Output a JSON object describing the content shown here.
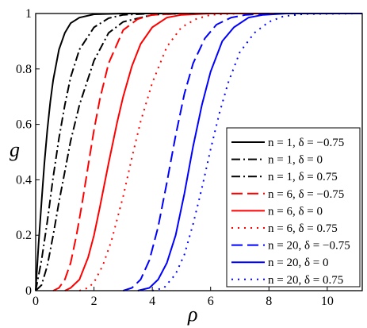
{
  "chart_data": {
    "type": "line",
    "xlabel": "ρ",
    "ylabel": "g",
    "xlim": [
      0,
      11.2
    ],
    "ylim": [
      0,
      1
    ],
    "x_ticks": [
      "0",
      "2",
      "4",
      "6",
      "8",
      "10"
    ],
    "y_ticks": [
      "0",
      "0.2",
      "0.4",
      "0.6",
      "0.8",
      "1"
    ],
    "grid": false,
    "legend_position": "right",
    "series": [
      {
        "name": "n = 1,  δ = −0.75",
        "color": "#000000",
        "dash": "solid",
        "x": [
          0,
          0.1,
          0.2,
          0.3,
          0.4,
          0.5,
          0.6,
          0.8,
          1.0,
          1.2,
          1.5,
          2.0,
          3.0,
          11.2
        ],
        "y": [
          0,
          0.17,
          0.32,
          0.46,
          0.58,
          0.68,
          0.76,
          0.87,
          0.93,
          0.965,
          0.985,
          0.997,
          1.0,
          1.0
        ]
      },
      {
        "name": "n = 1,  δ = 0",
        "color": "#000000",
        "dash": "dashdot",
        "x": [
          0,
          0.2,
          0.4,
          0.6,
          0.8,
          1.0,
          1.2,
          1.5,
          2.0,
          2.5,
          3.0,
          4.0,
          11.2
        ],
        "y": [
          0,
          0.11,
          0.25,
          0.41,
          0.55,
          0.67,
          0.77,
          0.87,
          0.95,
          0.983,
          0.995,
          1.0,
          1.0
        ]
      },
      {
        "name": "n = 1,  δ = 0.75",
        "color": "#000000",
        "dash": "dashdot",
        "x": [
          0,
          0.2,
          0.4,
          0.6,
          0.8,
          1.0,
          1.2,
          1.5,
          2.0,
          2.5,
          3.0,
          4.0,
          5.0,
          11.2
        ],
        "y": [
          0,
          0.02,
          0.09,
          0.2,
          0.32,
          0.43,
          0.54,
          0.67,
          0.83,
          0.93,
          0.97,
          0.995,
          1.0,
          1.0
        ]
      },
      {
        "name": "n = 6,  δ = −0.75",
        "color": "#ff0000",
        "dash": "longdash",
        "x": [
          0.6,
          0.8,
          1.0,
          1.2,
          1.4,
          1.6,
          1.8,
          2.0,
          2.2,
          2.5,
          3.0,
          3.5,
          4.0,
          5.0,
          11.2
        ],
        "y": [
          0,
          0.01,
          0.04,
          0.1,
          0.2,
          0.32,
          0.45,
          0.58,
          0.69,
          0.82,
          0.94,
          0.98,
          0.995,
          1.0,
          1.0
        ]
      },
      {
        "name": "n = 6,  δ = 0",
        "color": "#ff0000",
        "dash": "solid",
        "x": [
          1.0,
          1.2,
          1.5,
          1.8,
          2.0,
          2.2,
          2.5,
          2.8,
          3.0,
          3.3,
          3.6,
          4.0,
          4.5,
          5.0,
          6.0,
          11.2
        ],
        "y": [
          0,
          0.01,
          0.04,
          0.12,
          0.2,
          0.3,
          0.46,
          0.61,
          0.7,
          0.81,
          0.89,
          0.95,
          0.985,
          0.995,
          1.0,
          1.0
        ]
      },
      {
        "name": "n = 6,  δ = 0.75",
        "color": "#ff0000",
        "dash": "dot",
        "x": [
          1.5,
          1.8,
          2.0,
          2.3,
          2.6,
          3.0,
          3.3,
          3.6,
          4.0,
          4.5,
          5.0,
          5.5,
          6.0,
          7.0,
          11.2
        ],
        "y": [
          0,
          0.01,
          0.03,
          0.09,
          0.18,
          0.34,
          0.48,
          0.61,
          0.75,
          0.88,
          0.95,
          0.98,
          0.995,
          1.0,
          1.0
        ]
      },
      {
        "name": "n = 20,  δ = −0.75",
        "color": "#0000ff",
        "dash": "longdash",
        "x": [
          3.0,
          3.3,
          3.6,
          3.9,
          4.2,
          4.5,
          4.8,
          5.1,
          5.4,
          5.8,
          6.2,
          6.7,
          7.2,
          8.0,
          11.2
        ],
        "y": [
          0,
          0.01,
          0.04,
          0.11,
          0.23,
          0.39,
          0.56,
          0.71,
          0.82,
          0.91,
          0.96,
          0.985,
          0.995,
          1.0,
          1.0
        ]
      },
      {
        "name": "n = 20,  δ = 0",
        "color": "#0000ff",
        "dash": "solid",
        "x": [
          3.5,
          3.9,
          4.2,
          4.5,
          4.8,
          5.1,
          5.4,
          5.7,
          6.0,
          6.4,
          6.8,
          7.3,
          7.8,
          8.6,
          11.2
        ],
        "y": [
          0,
          0.01,
          0.04,
          0.1,
          0.2,
          0.35,
          0.52,
          0.67,
          0.79,
          0.9,
          0.95,
          0.985,
          0.995,
          1.0,
          1.0
        ]
      },
      {
        "name": "n = 20,  δ = 0.75",
        "color": "#0000ff",
        "dash": "dot",
        "x": [
          4.0,
          4.4,
          4.8,
          5.1,
          5.4,
          5.7,
          6.0,
          6.3,
          6.6,
          7.0,
          7.5,
          8.0,
          8.5,
          9.2,
          11.2
        ],
        "y": [
          0,
          0.01,
          0.06,
          0.13,
          0.24,
          0.37,
          0.51,
          0.64,
          0.75,
          0.86,
          0.93,
          0.97,
          0.99,
          0.998,
          1.0
        ]
      }
    ]
  }
}
